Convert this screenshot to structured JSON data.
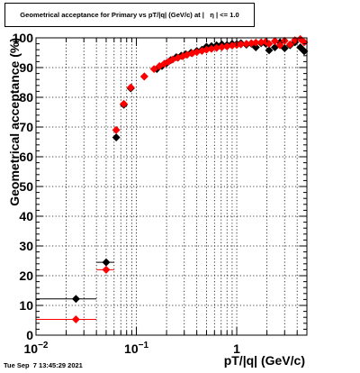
{
  "title": "Geometrical acceptance for Primary vs pT/|q| (GeV/c) at |   η | <= 1.0",
  "footer": "Tue Sep  7 13:45:29 2021",
  "colors": {
    "series_black": "#000000",
    "series_red": "#ff0000",
    "grid": "#000000"
  },
  "chart_data": {
    "type": "scatter",
    "title": "Geometrical acceptance for Primary vs pT/|q| (GeV/c) at |   η | <= 1.0",
    "xlabel": "pT/|q| (GeV/c)",
    "ylabel": "Geometrical acceptance (%)",
    "xscale": "log",
    "xlim": [
      0.01,
      5
    ],
    "ylim": [
      0,
      100
    ],
    "grid": true,
    "x_tick_labels": [
      {
        "value": 0.01,
        "base": "10",
        "exp": "−2"
      },
      {
        "value": 0.1,
        "base": "10",
        "exp": "−1"
      },
      {
        "value": 1,
        "base": "1",
        "exp": ""
      }
    ],
    "y_ticks": [
      0,
      10,
      20,
      30,
      40,
      50,
      60,
      70,
      80,
      90,
      100
    ],
    "series": [
      {
        "color": "#000000",
        "marker": "diamond",
        "points": [
          {
            "x": 0.025,
            "y": 12.2,
            "xerr": [
              0.01,
              0.04
            ]
          },
          {
            "x": 0.05,
            "y": 24.5,
            "xerr": [
              0.04,
              0.06
            ]
          },
          {
            "x": 0.063,
            "y": 66.5
          },
          {
            "x": 0.075,
            "y": 77.5
          },
          {
            "x": 0.088,
            "y": 83.0
          },
          {
            "x": 0.12,
            "y": 87.0
          },
          {
            "x": 0.16,
            "y": 89.5
          },
          {
            "x": 0.18,
            "y": 90.5
          },
          {
            "x": 0.2,
            "y": 91.5
          },
          {
            "x": 0.22,
            "y": 92.5
          },
          {
            "x": 0.25,
            "y": 93.5
          },
          {
            "x": 0.28,
            "y": 94.0
          },
          {
            "x": 0.31,
            "y": 94.5
          },
          {
            "x": 0.35,
            "y": 95.0
          },
          {
            "x": 0.4,
            "y": 95.6
          },
          {
            "x": 0.45,
            "y": 96.0
          },
          {
            "x": 0.5,
            "y": 97.0
          },
          {
            "x": 0.56,
            "y": 97.2
          },
          {
            "x": 0.63,
            "y": 97.5
          },
          {
            "x": 0.71,
            "y": 97.8
          },
          {
            "x": 0.8,
            "y": 97.6
          },
          {
            "x": 0.9,
            "y": 98.0
          },
          {
            "x": 1.0,
            "y": 97.9
          },
          {
            "x": 1.1,
            "y": 98.2
          },
          {
            "x": 1.25,
            "y": 97.7
          },
          {
            "x": 1.4,
            "y": 98.0
          },
          {
            "x": 1.55,
            "y": 96.8
          },
          {
            "x": 1.75,
            "y": 98.2
          },
          {
            "x": 1.95,
            "y": 98.0
          },
          {
            "x": 2.1,
            "y": 95.8
          },
          {
            "x": 2.4,
            "y": 96.8
          },
          {
            "x": 2.7,
            "y": 98.5
          },
          {
            "x": 3.0,
            "y": 96.5
          },
          {
            "x": 3.4,
            "y": 97.5
          },
          {
            "x": 3.8,
            "y": 98.5
          },
          {
            "x": 4.3,
            "y": 96.8
          },
          {
            "x": 4.7,
            "y": 95.5
          }
        ]
      },
      {
        "color": "#ff0000",
        "marker": "diamond",
        "points": [
          {
            "x": 0.025,
            "y": 5.3,
            "xerr": [
              0.01,
              0.04
            ]
          },
          {
            "x": 0.05,
            "y": 22.0,
            "xerr": [
              0.04,
              0.06
            ]
          },
          {
            "x": 0.063,
            "y": 69.0
          },
          {
            "x": 0.075,
            "y": 77.8
          },
          {
            "x": 0.088,
            "y": 83.3
          },
          {
            "x": 0.12,
            "y": 87.0
          },
          {
            "x": 0.15,
            "y": 89.5
          },
          {
            "x": 0.17,
            "y": 90.5
          },
          {
            "x": 0.19,
            "y": 91.3
          },
          {
            "x": 0.21,
            "y": 92.0
          },
          {
            "x": 0.23,
            "y": 92.7
          },
          {
            "x": 0.26,
            "y": 93.3
          },
          {
            "x": 0.29,
            "y": 93.8
          },
          {
            "x": 0.32,
            "y": 94.3
          },
          {
            "x": 0.36,
            "y": 94.8
          },
          {
            "x": 0.4,
            "y": 95.2
          },
          {
            "x": 0.45,
            "y": 95.6
          },
          {
            "x": 0.5,
            "y": 96.0
          },
          {
            "x": 0.56,
            "y": 96.3
          },
          {
            "x": 0.63,
            "y": 96.6
          },
          {
            "x": 0.71,
            "y": 96.9
          },
          {
            "x": 0.8,
            "y": 97.1
          },
          {
            "x": 0.9,
            "y": 97.4
          },
          {
            "x": 1.0,
            "y": 97.6
          },
          {
            "x": 1.1,
            "y": 97.8
          },
          {
            "x": 1.25,
            "y": 98.0
          },
          {
            "x": 1.4,
            "y": 98.2
          },
          {
            "x": 1.55,
            "y": 98.4
          },
          {
            "x": 1.75,
            "y": 98.5
          },
          {
            "x": 1.95,
            "y": 98.7
          },
          {
            "x": 2.1,
            "y": 98.0
          },
          {
            "x": 2.4,
            "y": 98.9
          },
          {
            "x": 2.7,
            "y": 97.5
          },
          {
            "x": 3.0,
            "y": 99.0
          },
          {
            "x": 3.4,
            "y": 97.8
          },
          {
            "x": 3.8,
            "y": 99.2
          },
          {
            "x": 4.3,
            "y": 99.6
          },
          {
            "x": 4.7,
            "y": 98.5
          }
        ]
      }
    ]
  }
}
